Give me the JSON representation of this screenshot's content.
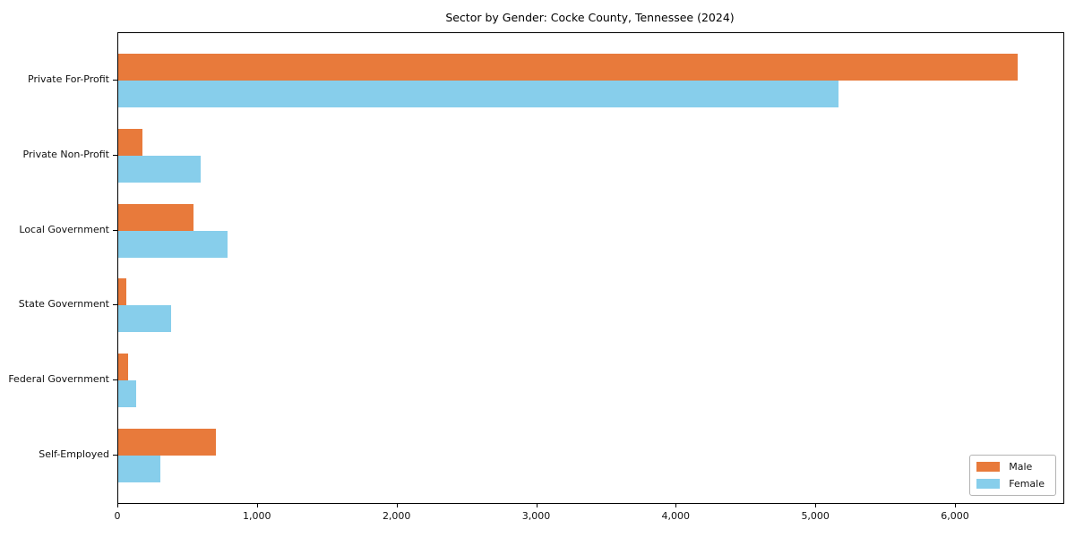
{
  "figure": {
    "background": "#ffffff"
  },
  "chart_data": {
    "type": "bar",
    "orientation": "horizontal",
    "title": "Sector by Gender: Cocke County, Tennessee (2024)",
    "categories": [
      "Private For-Profit",
      "Private Non-Profit",
      "Local Government",
      "State Government",
      "Federal Government",
      "Self-Employed"
    ],
    "series": [
      {
        "name": "Male",
        "color": "#e87a3b",
        "values": [
          6440,
          170,
          540,
          60,
          70,
          700
        ]
      },
      {
        "name": "Female",
        "color": "#87ceeb",
        "values": [
          5160,
          590,
          780,
          380,
          130,
          300
        ]
      }
    ],
    "xlim": [
      0,
      6770
    ],
    "xticks": [
      {
        "value": 0,
        "label": "0"
      },
      {
        "value": 1000,
        "label": "1,000"
      },
      {
        "value": 2000,
        "label": "2,000"
      },
      {
        "value": 3000,
        "label": "3,000"
      },
      {
        "value": 4000,
        "label": "4,000"
      },
      {
        "value": 5000,
        "label": "5,000"
      },
      {
        "value": 6000,
        "label": "6,000"
      }
    ],
    "xlabel": "",
    "ylabel": "",
    "grid": false,
    "legend": {
      "position": "lower-right",
      "entries": [
        "Male",
        "Female"
      ]
    },
    "axis_color": "#000000",
    "text_color": "#111111",
    "legend_border_color": "#b3b3b3"
  }
}
